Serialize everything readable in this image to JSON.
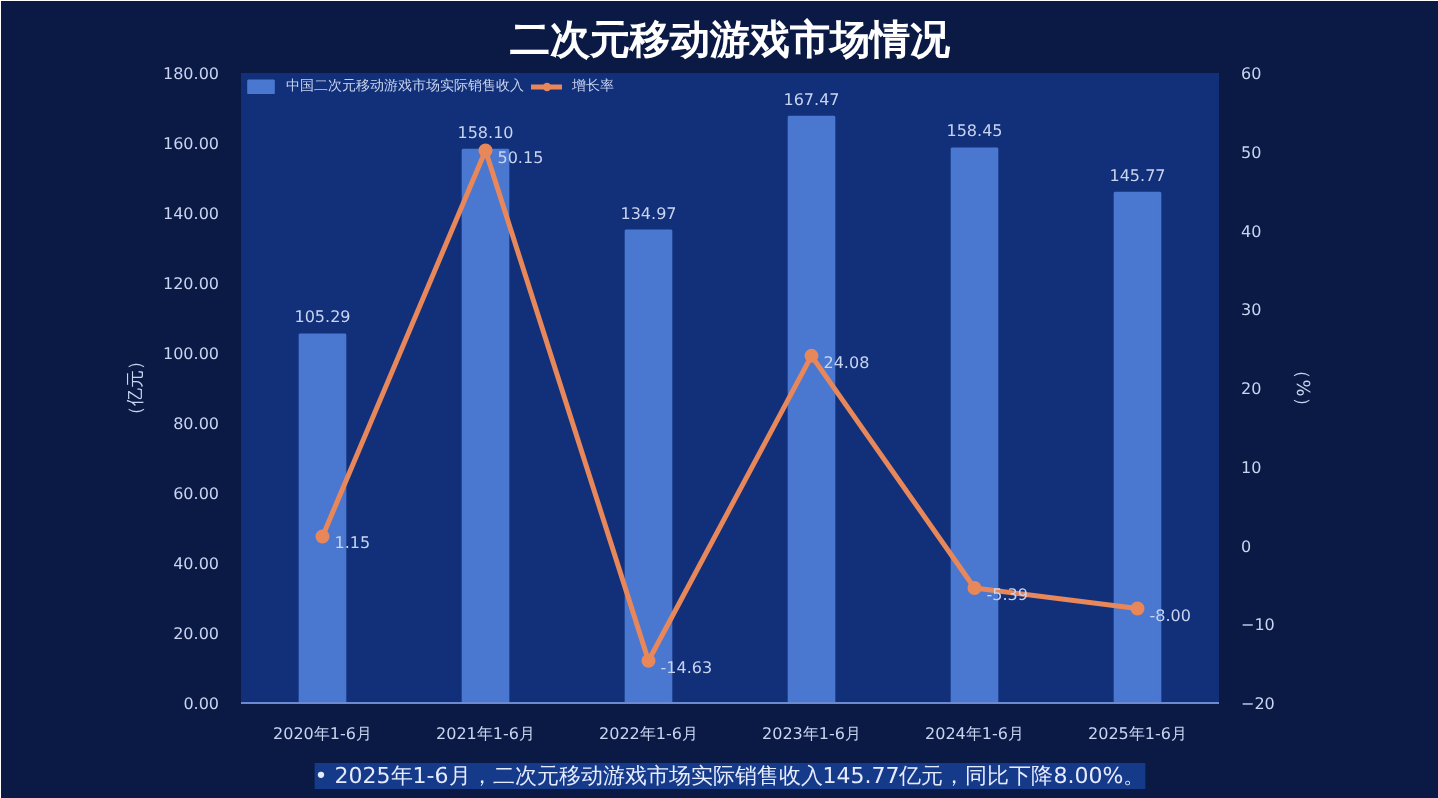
{
  "chart_data": {
    "type": "bar",
    "title": "二次元移动游戏市场情况",
    "ylabel": "（亿元）",
    "y2label": "（%）",
    "categories": [
      "2020年1-6月",
      "2021年1-6月",
      "2022年1-6月",
      "2023年1-6月",
      "2024年1-6月",
      "2025年1-6月"
    ],
    "series": [
      {
        "name": "中国二次元移动游戏市场实际销售收入",
        "color": "#4a78d0",
        "values": [
          105.29,
          158.1,
          134.97,
          167.47,
          158.45,
          145.77
        ],
        "value_labels": [
          "105.29",
          "158.10",
          "134.97",
          "167.47",
          "158.45",
          "145.77"
        ]
      },
      {
        "name": "增长率",
        "type": "line",
        "axis": "y2",
        "color": "#e8875a",
        "marker": "circle",
        "values": [
          1.15,
          50.15,
          -14.63,
          24.08,
          -5.39,
          -8.0
        ],
        "value_labels": [
          "1.15",
          "50.15",
          "-14.63",
          "24.08",
          "-5.39",
          "-8.00"
        ]
      }
    ],
    "ylim": [
      0,
      180
    ],
    "yticks": [
      {
        "value": 0,
        "label": "0.00"
      },
      {
        "value": 20,
        "label": "20.00"
      },
      {
        "value": 40,
        "label": "40.00"
      },
      {
        "value": 60,
        "label": "60.00"
      },
      {
        "value": 80,
        "label": "80.00"
      },
      {
        "value": 100,
        "label": "100.00"
      },
      {
        "value": 120,
        "label": "120.00"
      },
      {
        "value": 140,
        "label": "140.00"
      },
      {
        "value": 160,
        "label": "160.00"
      },
      {
        "value": 180,
        "label": "180.00"
      }
    ],
    "y2lim": [
      -20,
      60
    ],
    "y2ticks": [
      -20,
      -10,
      0,
      10,
      20,
      30,
      40,
      50,
      60
    ],
    "grid": false,
    "legend": "top left",
    "annotations": [
      "• 2025年1-6月，二次元移动游戏市场实际销售收入145.77亿元，同比下降8.00%。"
    ]
  }
}
